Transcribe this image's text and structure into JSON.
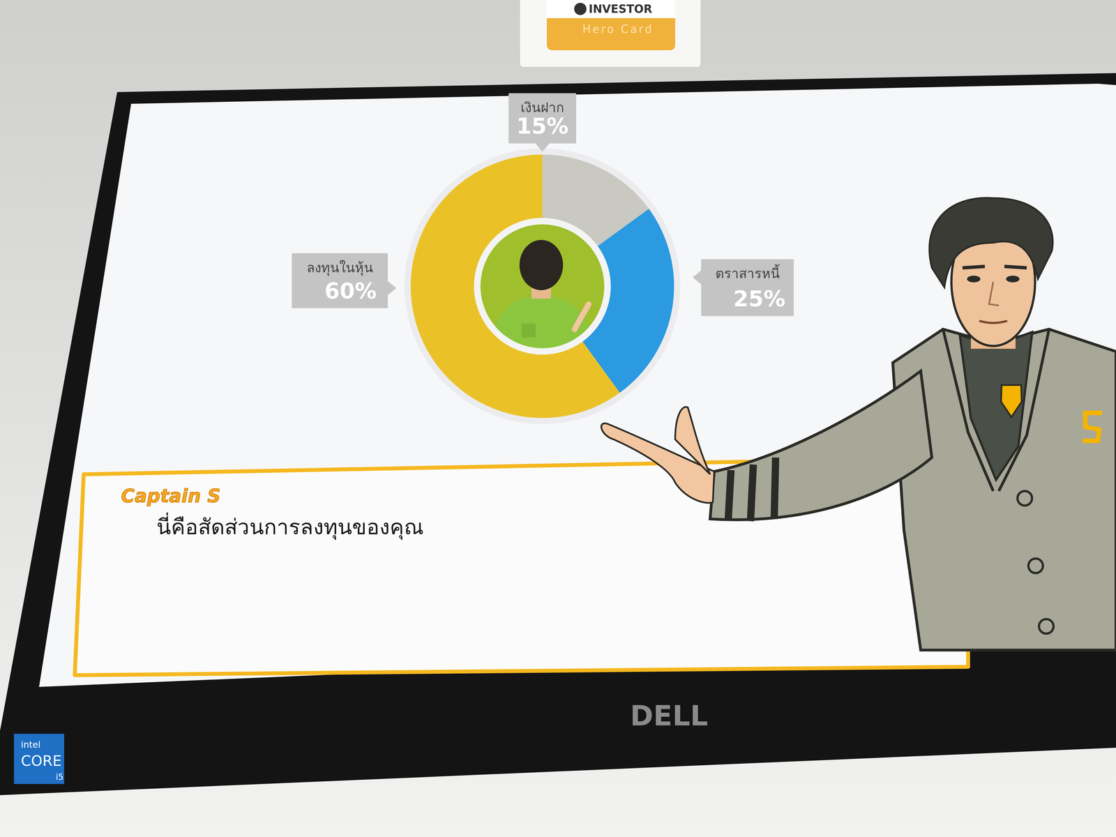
{
  "chart_data": {
    "type": "donut",
    "categories": [
      "เงินฝาก",
      "ตราสารหนี้",
      "ลงทุนในหุ้น"
    ],
    "values": [
      15,
      25,
      60
    ],
    "value_labels": [
      "15%",
      "25%",
      "60%"
    ],
    "colors": [
      "#c9c9c1",
      "#2b9ae0",
      "#eac228"
    ],
    "data_labels": true
  },
  "dialog": {
    "speaker": "Captain S",
    "message": "นี่คือสัดส่วนการลงทุนของคุณ"
  },
  "card": {
    "brand": "INVESTOR",
    "subtitle": "Hero Card"
  },
  "monitor": {
    "brand": "DELL",
    "sticker": [
      "intel",
      "CORE",
      "i5"
    ]
  }
}
